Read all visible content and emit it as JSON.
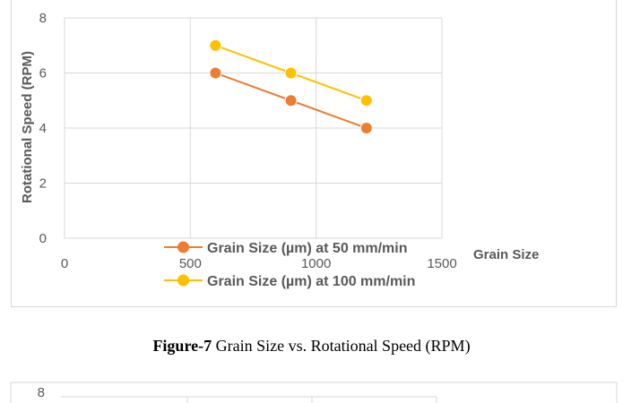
{
  "chart_data": {
    "type": "line",
    "title": "",
    "xlabel": "Grain Size",
    "ylabel": "Rotational Speed (RPM)",
    "xlim": [
      0,
      1500
    ],
    "ylim": [
      0,
      8
    ],
    "x_ticks": [
      "0",
      "500",
      "1000",
      "1500"
    ],
    "y_ticks": [
      "0",
      "2",
      "4",
      "6",
      "8"
    ],
    "grid": true,
    "legend_position": "bottom",
    "series": [
      {
        "name": "Grain Size (µm) at 50 mm/min",
        "color": "#ED7D31",
        "x": [
          600,
          900,
          1200
        ],
        "y": [
          6,
          5,
          4
        ]
      },
      {
        "name": "Grain Size (µm) at 100 mm/min",
        "color": "#FFC000",
        "x": [
          600,
          900,
          1200
        ],
        "y": [
          7,
          6,
          5
        ]
      }
    ]
  },
  "caption": {
    "label": "Figure-7",
    "text": " Grain Size vs. Rotational Speed (RPM)"
  },
  "next_figure": {
    "y_tick_top": "8"
  }
}
